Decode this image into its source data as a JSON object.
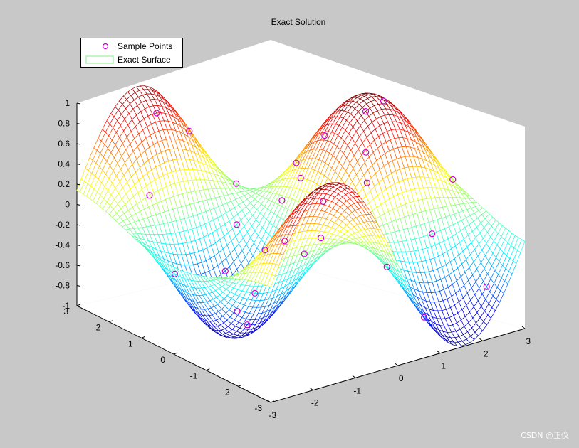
{
  "chart_data": {
    "type": "surface",
    "title": "Exact Solution",
    "function": "sin(x)*cos(y)",
    "x_range": [
      -3,
      3
    ],
    "y_range": [
      -3,
      3
    ],
    "z_range": [
      -1,
      1
    ],
    "x_ticks": [
      "-3",
      "-2",
      "-1",
      "0",
      "1",
      "2",
      "3"
    ],
    "y_ticks": [
      "-3",
      "-2",
      "-1",
      "0",
      "1",
      "2",
      "3"
    ],
    "z_ticks": [
      "-1",
      "-0.8",
      "-0.6",
      "-0.4",
      "-0.2",
      "0",
      "0.2",
      "0.4",
      "0.6",
      "0.8",
      "1"
    ],
    "colormap": "jet",
    "legend": {
      "placement": "top-left",
      "entries": [
        {
          "label": "Sample Points",
          "marker": "circle",
          "color": "#cc00cc"
        },
        {
          "label": "Exact Surface",
          "marker": "line",
          "color": "#88ee88"
        }
      ]
    },
    "sample_points": [
      {
        "x": -2.6,
        "y": -2.3
      },
      {
        "x": -2.2,
        "y": 1.8
      },
      {
        "x": -1.8,
        "y": -0.7
      },
      {
        "x": -1.5,
        "y": 2.5
      },
      {
        "x": -1.2,
        "y": 0.4
      },
      {
        "x": -0.9,
        "y": -1.8
      },
      {
        "x": -0.6,
        "y": 1.2
      },
      {
        "x": -0.3,
        "y": -0.5
      },
      {
        "x": 0.0,
        "y": 2.0
      },
      {
        "x": 0.2,
        "y": -2.4
      },
      {
        "x": 0.5,
        "y": 0.8
      },
      {
        "x": 0.8,
        "y": -1.0
      },
      {
        "x": 1.0,
        "y": 1.9
      },
      {
        "x": 1.3,
        "y": -0.3
      },
      {
        "x": 1.6,
        "y": 2.6
      },
      {
        "x": 1.8,
        "y": -1.7
      },
      {
        "x": 2.1,
        "y": 0.2
      },
      {
        "x": 2.4,
        "y": -2.6
      },
      {
        "x": 2.6,
        "y": 1.4
      },
      {
        "x": 2.9,
        "y": -0.9
      },
      {
        "x": -2.9,
        "y": 0.1
      },
      {
        "x": -0.5,
        "y": 2.8
      },
      {
        "x": 0.7,
        "y": -2.9
      },
      {
        "x": 2.2,
        "y": 2.2
      },
      {
        "x": -2.0,
        "y": -1.2
      },
      {
        "x": -1.1,
        "y": 0.9
      },
      {
        "x": 0.3,
        "y": 0.4
      },
      {
        "x": 1.4,
        "y": 1.1
      }
    ]
  },
  "watermark": "CSDN @正仪"
}
